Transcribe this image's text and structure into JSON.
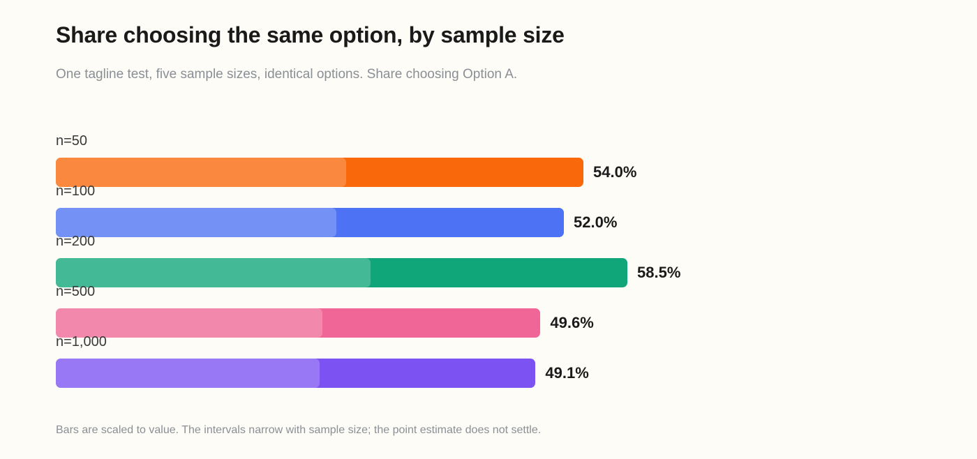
{
  "title": "Share choosing the same option, by sample size",
  "subtitle": "One tagline test, five sample sizes, identical options. Share choosing Option A.",
  "footnote": "Bars are scaled to value. The intervals narrow with sample size; the point estimate does not settle.",
  "chart_data": {
    "type": "bar",
    "orientation": "horizontal",
    "title": "Share choosing the same option, by sample size",
    "subtitle": "One tagline test, five sample sizes, identical options. Share choosing Option A.",
    "xlim": [
      0,
      100
    ],
    "categories": [
      "n=50",
      "n=100",
      "n=200",
      "n=500",
      "n=1,000"
    ],
    "values": [
      54.0,
      52.0,
      58.5,
      49.6,
      49.1
    ],
    "value_labels": [
      "54.0%",
      "52.0%",
      "58.5%",
      "49.6%",
      "49.1%"
    ],
    "interval_lower": [
      29.7,
      28.7,
      32.2,
      27.3,
      27.0
    ],
    "colors": [
      "#f9680a",
      "#4d72f3",
      "#10a679",
      "#f06797",
      "#7c53f2"
    ],
    "grid": false,
    "legend": "none"
  }
}
